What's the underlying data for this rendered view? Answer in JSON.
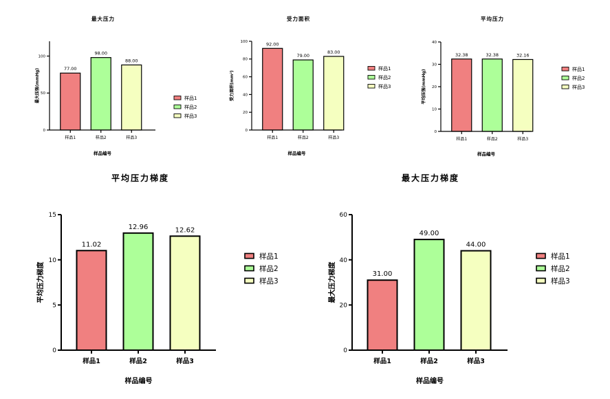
{
  "chart_data": [
    {
      "type": "bar",
      "title": "最大压力",
      "xlabel": "样品编号",
      "ylabel": "最大压强(mmHg)",
      "categories": [
        "样品1",
        "样品2",
        "样品3"
      ],
      "values": [
        77.0,
        98.0,
        88.0
      ],
      "value_labels": [
        "77.00",
        "98.00",
        "88.00"
      ],
      "ylim": [
        0,
        120
      ],
      "yticks": [
        0,
        50,
        100
      ],
      "legend": [
        "样品1",
        "样品2",
        "样品3"
      ],
      "legend_position": "right",
      "grid": false
    },
    {
      "type": "bar",
      "title": "受力面积",
      "xlabel": "样品编号",
      "ylabel": "受力面积(mm²)",
      "categories": [
        "样品1",
        "样品2",
        "样品3"
      ],
      "values": [
        92.0,
        79.0,
        83.0
      ],
      "value_labels": [
        "92.00",
        "79.00",
        "83.00"
      ],
      "ylim": [
        0,
        100
      ],
      "yticks": [
        0,
        20,
        40,
        60,
        80,
        100
      ],
      "legend": [
        "样品1",
        "样品2",
        "样品3"
      ],
      "legend_position": "right",
      "grid": false
    },
    {
      "type": "bar",
      "title": "平均压力",
      "xlabel": "样品编号",
      "ylabel": "平均压强(mmHg)",
      "categories": [
        "样品1",
        "样品2",
        "样品3"
      ],
      "values": [
        32.38,
        32.38,
        32.16
      ],
      "value_labels": [
        "32.38",
        "32.38",
        "32.16"
      ],
      "ylim": [
        0,
        40
      ],
      "yticks": [
        0,
        10,
        20,
        30,
        40
      ],
      "legend": [
        "样品1",
        "样品2",
        "样品3"
      ],
      "legend_position": "right",
      "grid": false
    },
    {
      "type": "bar",
      "title": "平均压力梯度",
      "xlabel": "样品编号",
      "ylabel": "平均压力梯度",
      "categories": [
        "样品1",
        "样品2",
        "样品3"
      ],
      "values": [
        11.02,
        12.96,
        12.62
      ],
      "value_labels": [
        "11.02",
        "12.96",
        "12.62"
      ],
      "ylim": [
        0,
        15
      ],
      "yticks": [
        0,
        5,
        10,
        15
      ],
      "legend": [
        "样品1",
        "样品2",
        "样品3"
      ],
      "legend_position": "right",
      "grid": false
    },
    {
      "type": "bar",
      "title": "最大压力梯度",
      "xlabel": "样品编号",
      "ylabel": "最大压力梯度",
      "categories": [
        "样品1",
        "样品2",
        "样品3"
      ],
      "values": [
        31.0,
        49.0,
        44.0
      ],
      "value_labels": [
        "31.00",
        "49.00",
        "44.00"
      ],
      "ylim": [
        0,
        60
      ],
      "yticks": [
        0,
        20,
        40,
        60
      ],
      "legend": [
        "样品1",
        "样品2",
        "样品3"
      ],
      "legend_position": "right",
      "grid": false
    }
  ],
  "colors": {
    "series": [
      "#f08080",
      "#adff99",
      "#f5ffc0"
    ],
    "axis": "#000000",
    "text": "#000000"
  }
}
